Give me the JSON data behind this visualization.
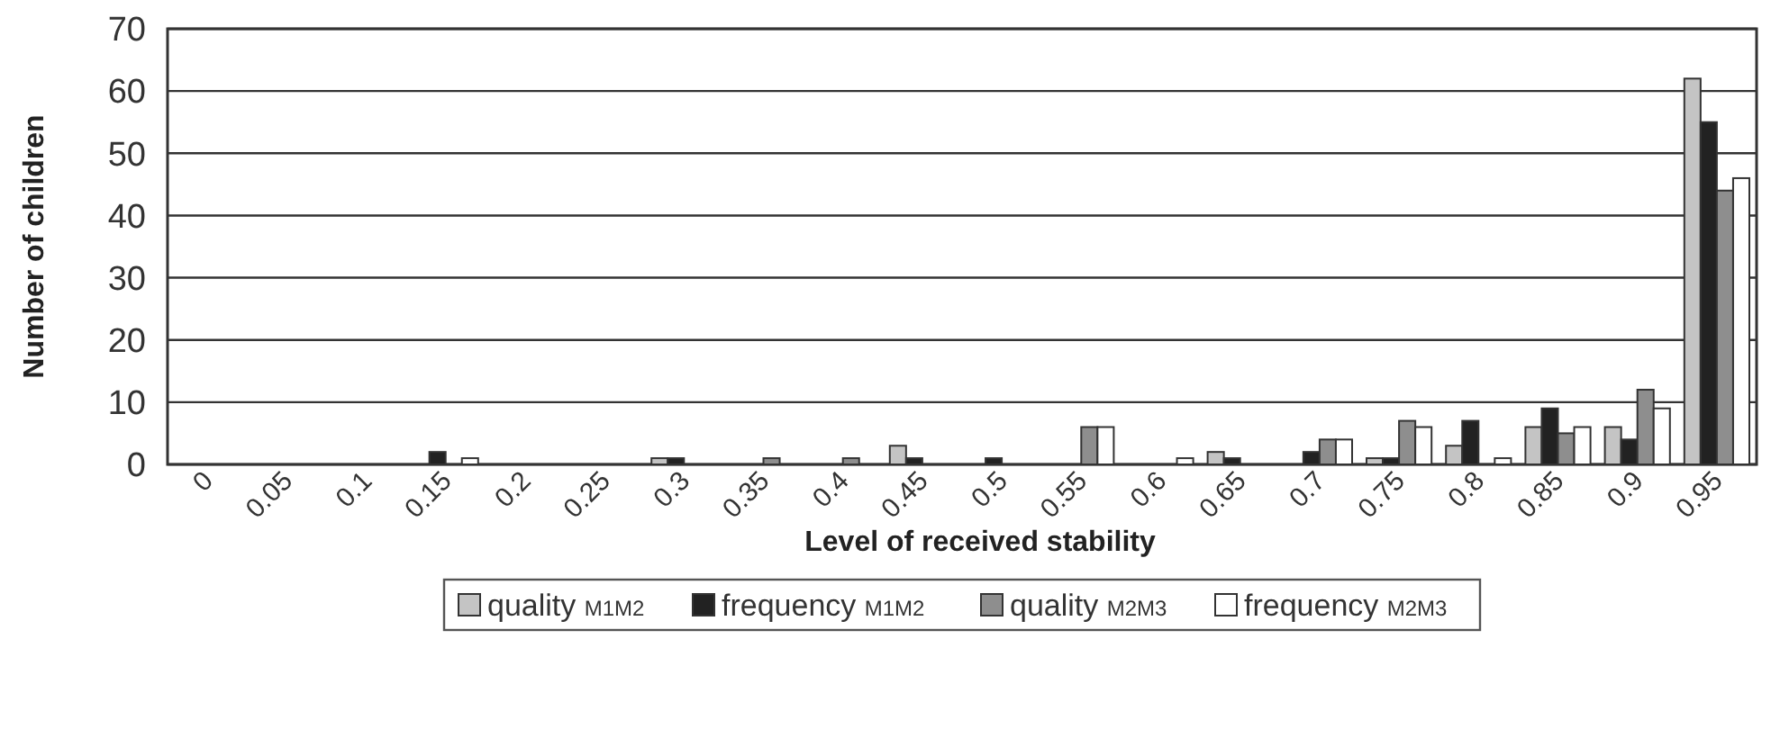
{
  "chart_data": {
    "type": "bar",
    "xlabel": "Level of received stability",
    "ylabel": "Number of children",
    "categories": [
      "0",
      "0.05",
      "0.1",
      "0.15",
      "0.2",
      "0.25",
      "0.3",
      "0.35",
      "0.4",
      "0.45",
      "0.5",
      "0.55",
      "0.6",
      "0.65",
      "0.7",
      "0.75",
      "0.8",
      "0.85",
      "0.9",
      "0.95"
    ],
    "series": [
      {
        "name": "quality $_{M1M2}$",
        "color": "#c4c4c4",
        "values": [
          0,
          0,
          0,
          0,
          0,
          0,
          1,
          0,
          0,
          3,
          0,
          0,
          0,
          2,
          0,
          1,
          3,
          6,
          6,
          62
        ]
      },
      {
        "name": "frequency $_{M1M2}$",
        "color": "#222222",
        "values": [
          0,
          0,
          0,
          2,
          0,
          0,
          1,
          0,
          0,
          1,
          1,
          0,
          0,
          1,
          2,
          1,
          7,
          9,
          4,
          55
        ]
      },
      {
        "name": "quality $_{M2M3}$",
        "color": "#8e8e8e",
        "values": [
          0,
          0,
          0,
          0,
          0,
          0,
          0,
          1,
          1,
          0,
          0,
          6,
          0,
          0,
          4,
          7,
          0,
          5,
          12,
          44
        ]
      },
      {
        "name": "frequency $_{M2M3}$",
        "color": "#ffffff",
        "values": [
          0,
          0,
          0,
          1,
          0,
          0,
          0,
          0,
          0,
          0,
          0,
          6,
          1,
          0,
          4,
          6,
          1,
          6,
          9,
          46
        ]
      }
    ],
    "ylim": [
      0,
      70
    ],
    "yticks": [
      0,
      10,
      20,
      30,
      40,
      50,
      60,
      70
    ],
    "grid": "y",
    "legend": "bottom"
  }
}
